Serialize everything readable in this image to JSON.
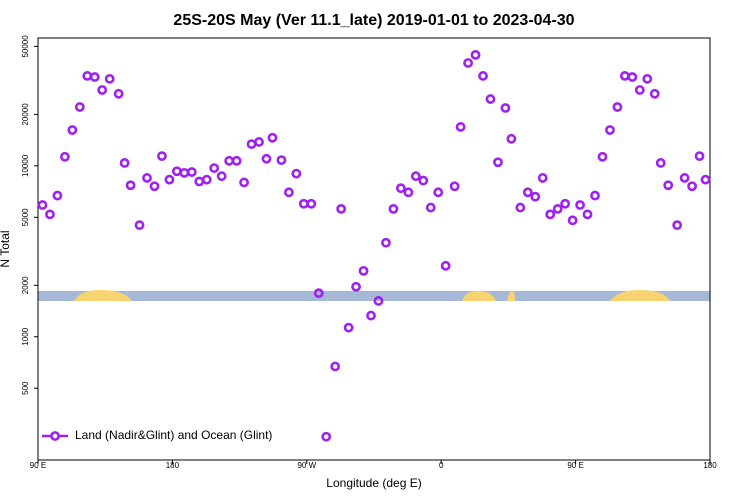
{
  "chart_data": {
    "type": "scatter",
    "title": "25S-20S May (Ver 11.1_late)   2019-01-01 to 2023-04-30",
    "x_label": "Longitude (deg E)",
    "y_label": "N Total",
    "log_y": true,
    "legend_position": "lower left",
    "x": [
      93,
      98,
      103,
      108,
      113,
      118,
      123,
      128,
      133,
      138,
      144,
      148,
      152,
      158,
      163,
      168,
      173,
      178,
      183,
      188,
      193,
      198,
      203,
      208,
      213,
      218,
      223,
      228,
      233,
      238,
      243,
      247,
      253,
      258,
      263,
      268,
      273,
      278,
      283,
      289,
      293,
      298,
      303,
      308,
      313,
      318,
      323,
      328,
      333,
      338,
      343,
      348,
      353,
      358,
      363,
      369,
      373,
      378,
      383,
      388,
      393,
      398,
      403,
      407,
      413,
      418,
      423,
      428,
      433,
      438,
      443,
      448,
      453,
      458,
      463,
      468,
      473,
      478,
      483,
      488,
      493,
      498,
      503,
      507,
      512,
      518,
      523,
      528,
      533,
      537
    ],
    "series": [
      {
        "name": "Land (Nadir&Glint) and Ocean (Glint)",
        "color": "#a020f0",
        "values": [
          5900,
          5200,
          6700,
          11300,
          16200,
          22100,
          33600,
          33100,
          27800,
          32300,
          26400,
          10400,
          7700,
          4500,
          8500,
          7600,
          11400,
          8300,
          9300,
          9100,
          9200,
          8100,
          8300,
          9700,
          8700,
          10700,
          10700,
          8000,
          13400,
          13800,
          11000,
          14600,
          10800,
          7000,
          9000,
          6000,
          6000,
          1800,
          260,
          670,
          5600,
          1130,
          1960,
          2430,
          1330,
          1620,
          3550,
          5600,
          7400,
          7000,
          8700,
          8200,
          5700,
          7000,
          2600,
          7600,
          16900,
          40000,
          44600,
          33600,
          24600,
          10500,
          21800,
          14400,
          5700,
          7000,
          6600,
          8500,
          5200,
          5600,
          6000,
          4800,
          5900,
          5200,
          6700,
          11300,
          16200,
          22100,
          33600,
          33100,
          27800,
          32300,
          26400,
          10400,
          7700,
          4500,
          8500,
          7600,
          11400,
          8300
        ]
      }
    ],
    "xlim": [
      90,
      540
    ],
    "xticks": [
      {
        "value": 90,
        "label": "90 E"
      },
      180,
      {
        "value": 270,
        "label": "90 W"
      },
      {
        "value": 360,
        "label": "0"
      },
      {
        "value": 450,
        "label": "90 E"
      },
      {
        "value": 540,
        "label": "180"
      }
    ],
    "ylim": [
      190,
      56000
    ],
    "yticks": [
      500,
      1000,
      2000,
      5000,
      10000,
      20000,
      50000
    ]
  }
}
